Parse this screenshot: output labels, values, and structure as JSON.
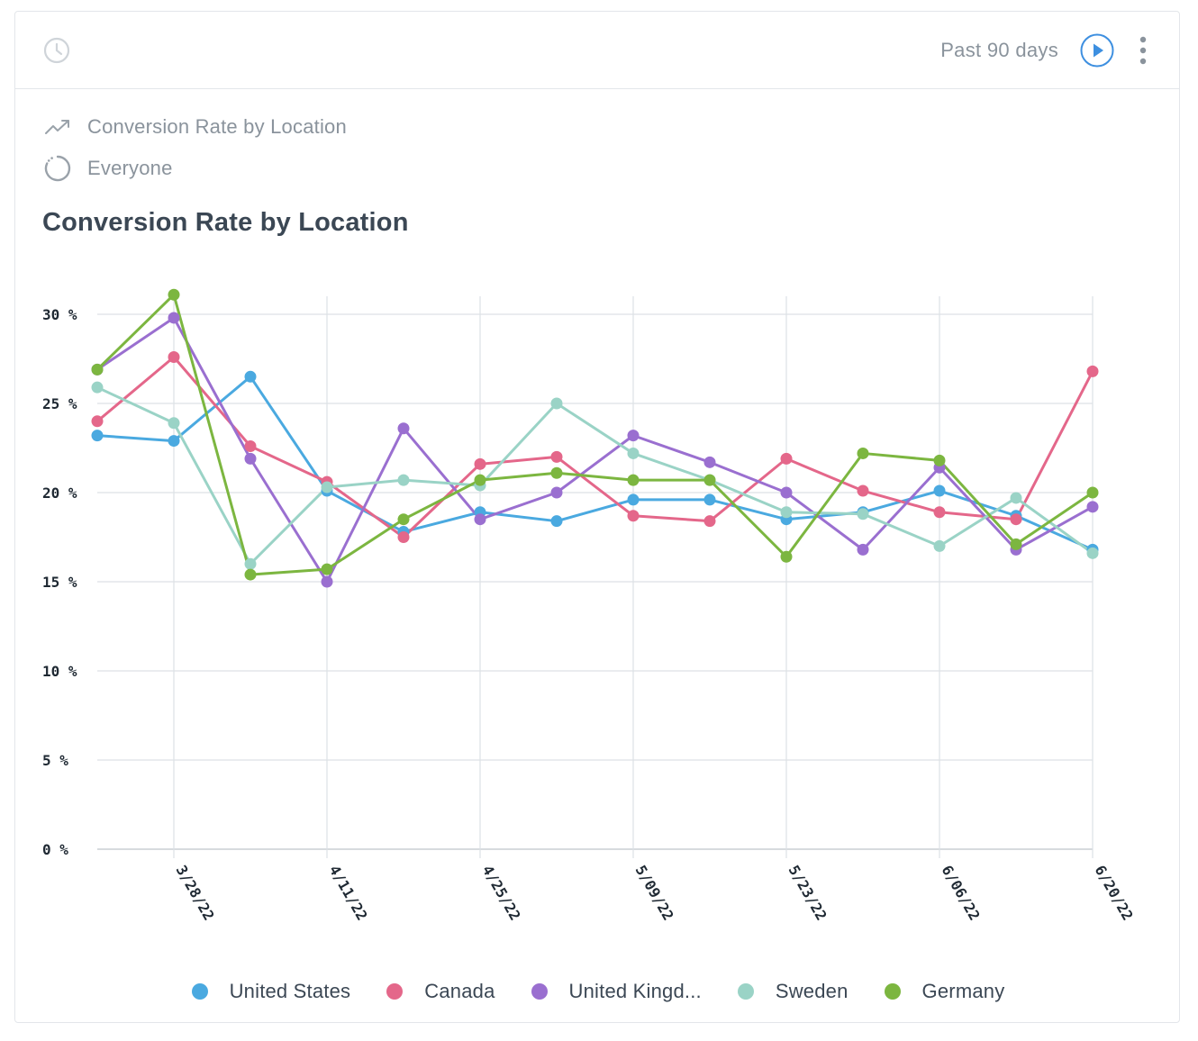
{
  "header": {
    "range_label": "Past 90 days",
    "icons": {
      "left": "clock-icon",
      "play": "play-icon",
      "more": "more-vertical-icon"
    }
  },
  "meta": {
    "report_name": "Conversion Rate by Location",
    "segment": "Everyone",
    "icons": {
      "report": "trend-line-icon",
      "segment": "segment-circle-icon"
    }
  },
  "chart_data": {
    "type": "line",
    "title": "Conversion Rate by Location",
    "xlabel": "",
    "ylabel": "",
    "ylim": [
      0,
      30
    ],
    "y_ticks": [
      0,
      5,
      10,
      15,
      20,
      25,
      30
    ],
    "y_tick_labels": [
      "0 %",
      "5 %",
      "10 %",
      "15 %",
      "20 %",
      "25 %",
      "30 %"
    ],
    "x": [
      "3/21/22",
      "3/28/22",
      "4/04/22",
      "4/11/22",
      "4/18/22",
      "4/25/22",
      "5/02/22",
      "5/09/22",
      "5/16/22",
      "5/23/22",
      "5/30/22",
      "6/06/22",
      "6/13/22",
      "6/20/22"
    ],
    "x_tick_labels": [
      "3/28/22",
      "4/11/22",
      "4/25/22",
      "5/09/22",
      "5/23/22",
      "6/06/22",
      "6/20/22"
    ],
    "grid": true,
    "legend_position": "bottom",
    "series": [
      {
        "name": "United States",
        "color": "#4aa9e0",
        "values": [
          23.2,
          22.9,
          26.5,
          20.1,
          17.8,
          18.9,
          18.4,
          19.6,
          19.6,
          18.5,
          18.9,
          20.1,
          18.7,
          16.8
        ]
      },
      {
        "name": "Canada",
        "color": "#e4678a",
        "values": [
          24.0,
          27.6,
          22.6,
          20.6,
          17.5,
          21.6,
          22.0,
          18.7,
          18.4,
          21.9,
          20.1,
          18.9,
          18.5,
          26.8
        ]
      },
      {
        "name": "United Kingd...",
        "color": "#9a6fd0",
        "values": [
          26.9,
          29.8,
          21.9,
          15.0,
          23.6,
          18.5,
          20.0,
          23.2,
          21.7,
          20.0,
          16.8,
          21.4,
          16.8,
          19.2
        ]
      },
      {
        "name": "Sweden",
        "color": "#9ad3c6",
        "values": [
          25.9,
          23.9,
          16.0,
          20.3,
          20.7,
          20.4,
          25.0,
          22.2,
          20.7,
          18.9,
          18.8,
          17.0,
          19.7,
          16.6
        ]
      },
      {
        "name": "Germany",
        "color": "#7cb640",
        "values": [
          26.9,
          31.1,
          15.4,
          15.7,
          18.5,
          20.7,
          21.1,
          20.7,
          20.7,
          16.4,
          22.2,
          21.8,
          17.1,
          20.0
        ]
      }
    ]
  }
}
